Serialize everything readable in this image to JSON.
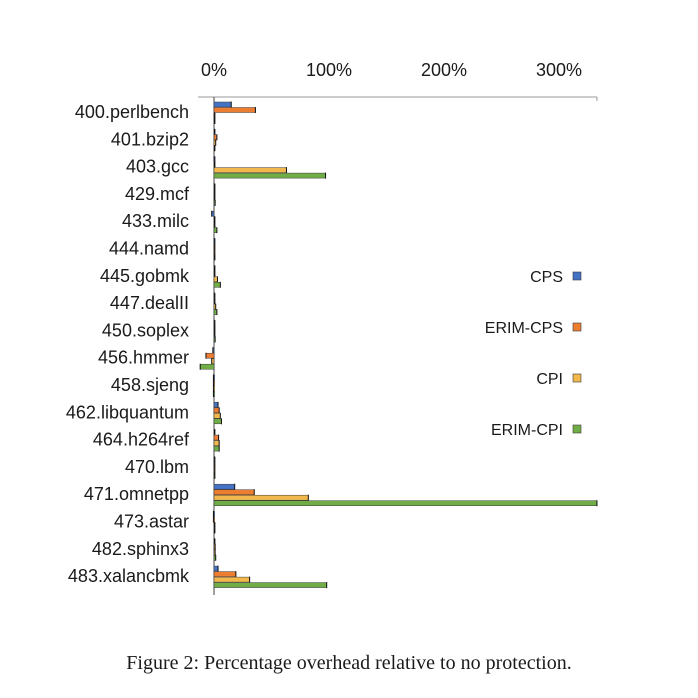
{
  "caption": "Figure 2: Percentage overhead relative to no protection.",
  "chart_data": {
    "type": "bar",
    "orientation": "horizontal",
    "xaxis_position": "top",
    "xticks": [
      "0%",
      "100%",
      "200%",
      "300%"
    ],
    "xlim": [
      -12,
      333
    ],
    "legend_position": "right",
    "grid": false,
    "categories": [
      "400.perlbench",
      "401.bzip2",
      "403.gcc",
      "429.mcf",
      "433.milc",
      "444.namd",
      "445.gobmk",
      "447.dealII",
      "450.soplex",
      "456.hmmer",
      "458.sjeng",
      "462.libquantum",
      "464.h264ref",
      "470.lbm",
      "471.omnetpp",
      "473.astar",
      "482.sphinx3",
      "483.xalancbmk"
    ],
    "series": [
      {
        "name": "CPS",
        "color": "#4472c4",
        "values": [
          15,
          0.5,
          0.2,
          0.5,
          -2,
          0.2,
          0.5,
          0.3,
          0.3,
          -1,
          -0.5,
          3.5,
          0.5,
          0.3,
          18,
          -0.5,
          0.5,
          3.5
        ]
      },
      {
        "name": "ERIM-CPS",
        "color": "#ed7d31",
        "values": [
          36,
          2.5,
          0.5,
          0.5,
          0.5,
          0.3,
          0.5,
          0.5,
          0.5,
          -7,
          -0.5,
          4.5,
          4,
          0.3,
          35,
          -0.5,
          1,
          19
        ]
      },
      {
        "name": "CPI",
        "color": "#f2b84b",
        "values": [
          0.5,
          1.5,
          63,
          0.5,
          0.5,
          0.3,
          3,
          1.5,
          0.5,
          -2,
          -0.5,
          5.5,
          4.5,
          0.3,
          82,
          0.5,
          1,
          31
        ]
      },
      {
        "name": "ERIM-CPI",
        "color": "#70ad47",
        "values": [
          0.5,
          0.5,
          97,
          1,
          2.5,
          0.5,
          5.5,
          2.5,
          1,
          -12,
          -0.5,
          6.5,
          4.5,
          0.3,
          333,
          0.5,
          1.5,
          98
        ]
      }
    ]
  }
}
